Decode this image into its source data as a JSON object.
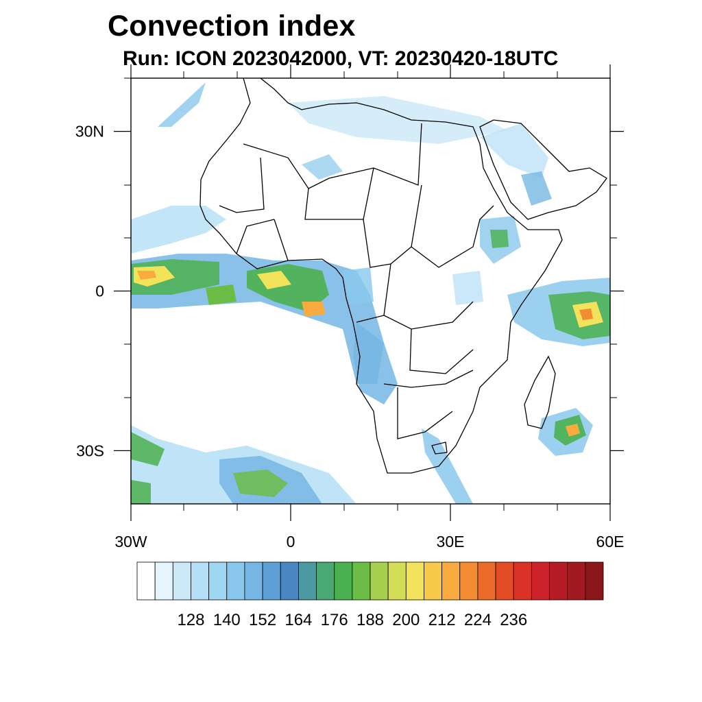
{
  "header": {
    "title": "Convection index",
    "subtitle": "Run: ICON 2023042000,  VT: 20230420-18UTC"
  },
  "axes": {
    "x_labels": [
      {
        "lon": -30,
        "text": "30W"
      },
      {
        "lon": 0,
        "text": "0"
      },
      {
        "lon": 30,
        "text": "30E"
      },
      {
        "lon": 60,
        "text": "60E"
      }
    ],
    "y_labels": [
      {
        "lat": 30,
        "text": "30N"
      },
      {
        "lat": 0,
        "text": "0"
      },
      {
        "lat": -30,
        "text": "30S"
      }
    ],
    "lon_range": [
      -30,
      60
    ],
    "lat_range": [
      -40,
      40
    ]
  },
  "colorbar": {
    "colors": [
      "#ffffff",
      "#e6f4fb",
      "#cbe8f7",
      "#b4def6",
      "#9fd6f2",
      "#89c8ec",
      "#76b6e4",
      "#5e9fd6",
      "#4a87c2",
      "#4b9aa1",
      "#4aa872",
      "#4bb04f",
      "#6cbd45",
      "#a6cf4f",
      "#d3dd55",
      "#f2e35a",
      "#f8c84b",
      "#f9ab3f",
      "#f38c32",
      "#ec6b2a",
      "#e44c25",
      "#dc3127",
      "#cc2229",
      "#b51c25",
      "#a11a1f",
      "#8a181a"
    ],
    "labels": [
      "128",
      "140",
      "152",
      "164",
      "176",
      "188",
      "200",
      "212",
      "224",
      "236"
    ]
  }
}
